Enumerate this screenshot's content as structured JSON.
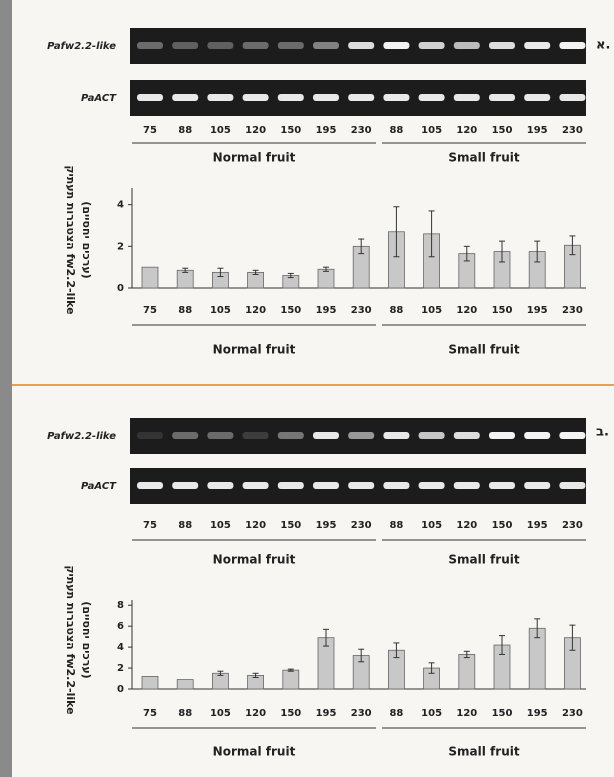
{
  "panels": [
    {
      "label": "א.",
      "rows": [
        "Pafw2.2-like",
        "PaACT"
      ],
      "lanes": [
        "75",
        "88",
        "105",
        "120",
        "150",
        "195",
        "230",
        "88",
        "105",
        "120",
        "150",
        "195",
        "230"
      ],
      "groups": [
        "Normal fruit",
        "Small fruit"
      ]
    },
    {
      "label": "ב.",
      "rows": [
        "Pafw2.2-like",
        "PaACT"
      ],
      "lanes": [
        "75",
        "88",
        "105",
        "120",
        "150",
        "195",
        "230",
        "88",
        "105",
        "120",
        "150",
        "195",
        "230"
      ],
      "groups": [
        "Normal fruit",
        "Small fruit"
      ]
    }
  ],
  "chart_data": [
    {
      "type": "bar",
      "ylabel": [
        "הצטברות תעתיק fw2.2-like",
        "(ערכים יחסיים)"
      ],
      "categories": [
        "75",
        "88",
        "105",
        "120",
        "150",
        "195",
        "230",
        "88",
        "105",
        "120",
        "150",
        "195",
        "230"
      ],
      "values": [
        1,
        0.85,
        0.75,
        0.75,
        0.6,
        0.9,
        2.0,
        2.7,
        2.6,
        1.65,
        1.75,
        1.75,
        2.05
      ],
      "errors": [
        0,
        0.1,
        0.2,
        0.1,
        0.1,
        0.1,
        0.35,
        1.2,
        1.1,
        0.35,
        0.5,
        0.5,
        0.45
      ],
      "groups": [
        "Normal fruit",
        "Small fruit"
      ],
      "color": "#c8c8c8",
      "ylim": [
        0,
        4.8
      ],
      "yticks": [
        0,
        2,
        4
      ]
    },
    {
      "type": "bar",
      "ylabel": [
        "הצטברות תעתיק fw2.2-like",
        "(ערכים יחסיים)"
      ],
      "categories": [
        "75",
        "88",
        "105",
        "120",
        "150",
        "195",
        "230",
        "88",
        "105",
        "120",
        "150",
        "195",
        "230"
      ],
      "values": [
        1.2,
        0.9,
        1.5,
        1.3,
        1.8,
        4.9,
        3.2,
        3.7,
        2.0,
        3.3,
        4.2,
        5.8,
        4.9
      ],
      "errors": [
        0,
        0,
        0.2,
        0.2,
        0.1,
        0.8,
        0.6,
        0.7,
        0.5,
        0.3,
        0.9,
        0.9,
        1.2
      ],
      "groups": [
        "Normal fruit",
        "Small fruit"
      ],
      "color": "#c8c8c8",
      "ylim": [
        0,
        8.5
      ],
      "yticks": [
        0,
        2,
        4,
        6,
        8
      ]
    }
  ]
}
